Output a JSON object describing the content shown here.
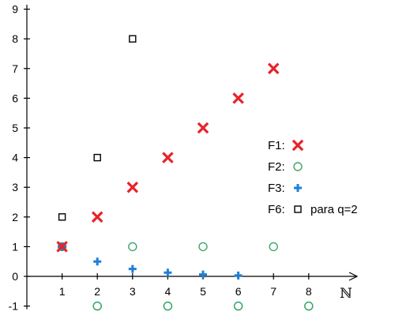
{
  "chart_data": {
    "type": "scatter",
    "title": "",
    "xlabel": "ℕ",
    "ylabel": "",
    "xlim": [
      0,
      8.4
    ],
    "ylim": [
      -1,
      9
    ],
    "x_ticks": [
      1,
      2,
      3,
      4,
      5,
      6,
      7,
      8
    ],
    "y_ticks": [
      -1,
      0,
      1,
      2,
      3,
      4,
      5,
      6,
      7,
      8,
      9
    ],
    "grid": false,
    "legend_position": "right",
    "series": [
      {
        "name": "F1:",
        "marker": "x",
        "color": "#e8232a",
        "x": [
          1,
          2,
          3,
          4,
          5,
          6,
          7
        ],
        "y": [
          1,
          2,
          3,
          4,
          5,
          6,
          7
        ]
      },
      {
        "name": "F2:",
        "marker": "circle",
        "color": "#3aa66a",
        "x": [
          1,
          2,
          3,
          4,
          5,
          6,
          7,
          8,
          2,
          4,
          6,
          8
        ],
        "y": [
          1,
          -1,
          1,
          -1,
          1,
          -1,
          1,
          -1,
          -1,
          -1,
          -1,
          -1
        ]
      },
      {
        "name": "F3:",
        "marker": "plus",
        "color": "#1f7fd8",
        "x": [
          1,
          2,
          3,
          4,
          5,
          6
        ],
        "y": [
          1,
          0.5,
          0.25,
          0.125,
          0.0625,
          0.03125
        ]
      },
      {
        "name": "F6:",
        "marker": "square",
        "color": "#000000",
        "note": "para q=2",
        "x": [
          1,
          2,
          3
        ],
        "y": [
          2,
          4,
          8
        ]
      }
    ]
  }
}
